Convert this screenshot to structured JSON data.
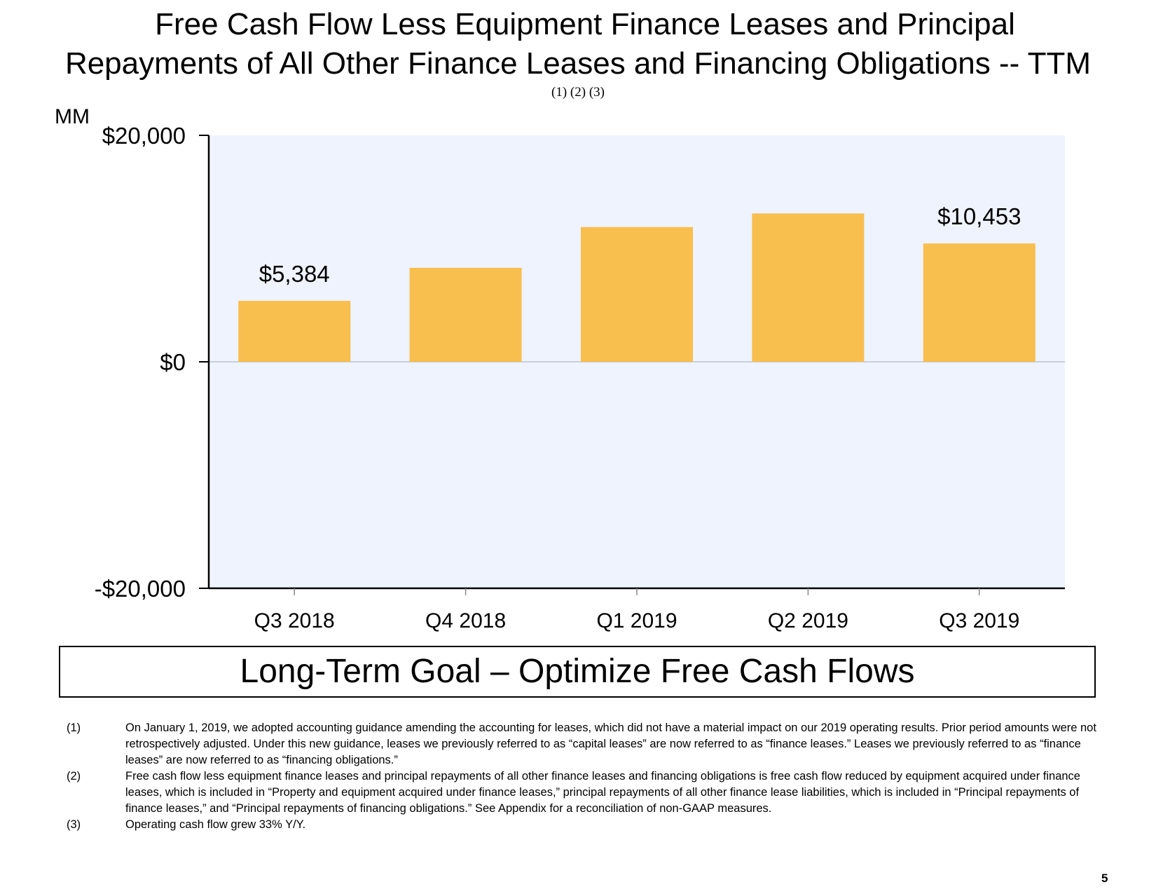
{
  "title_line_1": "Free Cash Flow Less Equipment Finance Leases and Principal",
  "title_line_2": "Repayments of All Other Finance Leases and Financing Obligations -- TTM",
  "title_footnote_refs": "(1) (2) (3)",
  "chart_data": {
    "type": "bar",
    "unit_label": "MM",
    "categories": [
      "Q3 2018",
      "Q4 2018",
      "Q1 2019",
      "Q2 2019",
      "Q3 2019"
    ],
    "values": [
      5384,
      8300,
      11900,
      13100,
      10453
    ],
    "data_labels": [
      {
        "index": 0,
        "text": "$5,384"
      },
      {
        "index": 4,
        "text": "$10,453"
      }
    ],
    "ylim": [
      -20000,
      20000
    ],
    "yticks": [
      {
        "value": 20000,
        "label": "$20,000"
      },
      {
        "value": 0,
        "label": "$0"
      },
      {
        "value": -20000,
        "label": "-$20,000"
      }
    ],
    "colors": {
      "bar": "#F8BE4E",
      "plot_background": "#EEF3FD",
      "zero_line": "#C9D0DA",
      "axis": "#000000"
    }
  },
  "goal_banner": "Long-Term Goal – Optimize Free Cash Flows",
  "footnotes": [
    {
      "num": "(1)",
      "text": "On January 1, 2019, we adopted accounting guidance amending the accounting for leases, which did not have a material impact on our 2019 operating results. Prior period amounts were not retrospectively adjusted. Under this new guidance, leases we previously referred to as “capital leases” are now referred to as “finance leases.” Leases we previously referred to as “finance leases” are now referred to as “financing obligations.”"
    },
    {
      "num": "(2)",
      "text": "Free cash flow less equipment finance leases and principal repayments of all other finance leases and financing obligations is free cash flow reduced by equipment acquired under finance leases, which is included in “Property and equipment acquired under finance leases,” principal repayments of all other finance lease liabilities, which is included in “Principal repayments of finance leases,” and “Principal repayments of financing obligations.” See Appendix for a reconciliation of non-GAAP measures."
    },
    {
      "num": "(3)",
      "text": "Operating cash flow grew 33% Y/Y."
    }
  ],
  "page_number": "5"
}
